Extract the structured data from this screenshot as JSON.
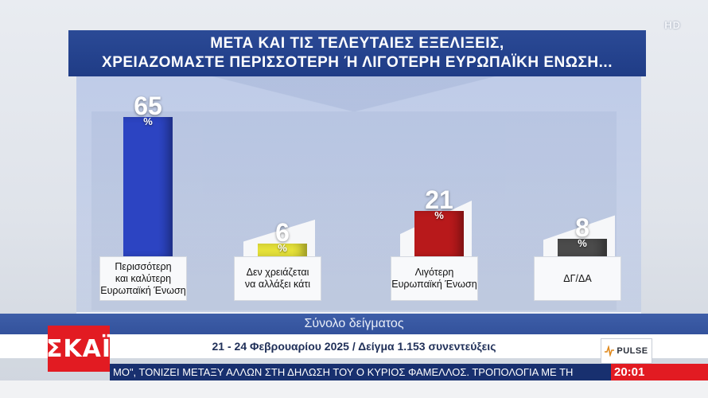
{
  "header": {
    "title_line1": "ΜΕΤΑ ΚΑΙ ΤΙΣ ΤΕΛΕΥΤΑΙΕΣ ΕΞΕΛΙΞΕΙΣ,",
    "title_line2": "ΧΡΕΙΑΖΟΜΑΣΤΕ ΠΕΡΙΣΣΟΤΕΡΗ Ή ΛΙΓΟΤΕΡΗ ΕΥΡΩΠΑΪΚΗ ΕΝΩΣΗ..."
  },
  "channel": {
    "hd_badge": "HD",
    "logo": "ΣΚΑΪ"
  },
  "chart_data": {
    "type": "bar",
    "categories": [
      "Περισσότερη\nκαι καλύτερη\nΕυρωπαϊκή Ένωση",
      "Δεν χρειάζεται\nνα αλλάξει κάτι",
      "Λιγότερη\nΕυρωπαϊκή Ένωση",
      "ΔΓ/ΔΑ"
    ],
    "values": [
      65,
      6,
      21,
      8
    ],
    "unit": "%",
    "colors": [
      "#2c44c2",
      "#e6e23a",
      "#b8191b",
      "#4b4b4b"
    ],
    "ylim": [
      0,
      65
    ],
    "title": "",
    "xlabel": "",
    "ylabel": "",
    "grid": false
  },
  "footer": {
    "sample_label": "Σύνολο δείγματος",
    "date_info": "21 - 24 Φεβρουαρίου 2025 / Δείγμα 1.153 συνεντεύξεις",
    "pollster": "PULSE",
    "ticker_text": "ΜΟ\", ΤΟΝΙΖΕΙ ΜΕΤΑΞΥ ΑΛΛΩΝ ΣΤΗ ΔΗΛΩΣΗ ΤΟΥ Ο ΚΥΡΙΟΣ ΦΑΜΕΛΛΟΣ.   ΤΡΟΠΟΛΟΓΙΑ ΜΕ ΤΗ",
    "clock": "20:01"
  }
}
